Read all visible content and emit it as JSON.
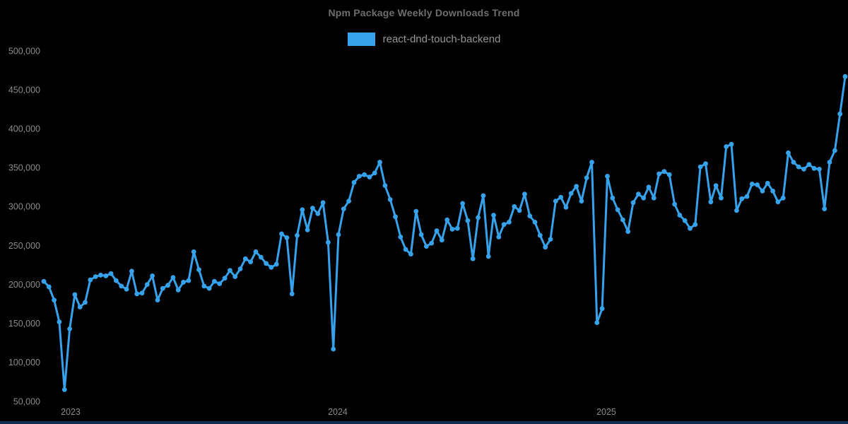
{
  "page": {
    "background": "#000000",
    "bottom_bar_color": "#142c54"
  },
  "chart_data": {
    "type": "line",
    "title": "Npm Package Weekly Downloads Trend",
    "legend_position": "top",
    "grid": false,
    "marker_style": "circle",
    "series": [
      {
        "name": "react-dnd-touch-backend",
        "color": "#36a2eb",
        "unit": "downloads per week",
        "values": [
          205000,
          198000,
          181000,
          153000,
          66000,
          144000,
          188000,
          172000,
          178000,
          207000,
          211000,
          213000,
          212000,
          215000,
          206000,
          199000,
          195000,
          218000,
          189000,
          190000,
          201000,
          212000,
          181000,
          196000,
          200000,
          210000,
          194000,
          204000,
          206000,
          243000,
          220000,
          199000,
          196000,
          205000,
          202000,
          209000,
          219000,
          211000,
          221000,
          234000,
          230000,
          243000,
          236000,
          228000,
          223000,
          227000,
          266000,
          261000,
          189000,
          264000,
          297000,
          271000,
          299000,
          292000,
          306000,
          255000,
          118000,
          265000,
          298000,
          308000,
          332000,
          340000,
          342000,
          339000,
          344000,
          358000,
          328000,
          310000,
          288000,
          262000,
          246000,
          240000,
          295000,
          265000,
          250000,
          254000,
          270000,
          258000,
          284000,
          272000,
          273000,
          305000,
          283000,
          234000,
          287000,
          315000,
          237000,
          290000,
          262000,
          278000,
          281000,
          301000,
          296000,
          317000,
          289000,
          281000,
          264000,
          249000,
          259000,
          308000,
          313000,
          300000,
          318000,
          327000,
          308000,
          338000,
          358000,
          152000,
          170000,
          340000,
          312000,
          297000,
          284000,
          269000,
          306000,
          317000,
          312000,
          326000,
          312000,
          343000,
          346000,
          342000,
          304000,
          290000,
          283000,
          273000,
          278000,
          352000,
          356000,
          307000,
          328000,
          312000,
          378000,
          381000,
          296000,
          311000,
          314000,
          330000,
          329000,
          321000,
          331000,
          321000,
          307000,
          312000,
          370000,
          358000,
          352000,
          349000,
          355000,
          350000,
          349000,
          298000,
          358000,
          373000,
          420000,
          468000
        ]
      }
    ],
    "x_axis": {
      "unit": "week",
      "ticks": [
        {
          "label": "2023",
          "week_index": 5.19
        },
        {
          "label": "2024",
          "week_index": 56.86
        },
        {
          "label": "2025",
          "week_index": 108.8
        }
      ]
    },
    "y_axis": {
      "min": 50000,
      "max": 500000,
      "tick_step": 50000,
      "ticks": [
        50000,
        100000,
        150000,
        200000,
        250000,
        300000,
        350000,
        400000,
        450000,
        500000
      ],
      "label_color": "#8a8a8a"
    }
  }
}
